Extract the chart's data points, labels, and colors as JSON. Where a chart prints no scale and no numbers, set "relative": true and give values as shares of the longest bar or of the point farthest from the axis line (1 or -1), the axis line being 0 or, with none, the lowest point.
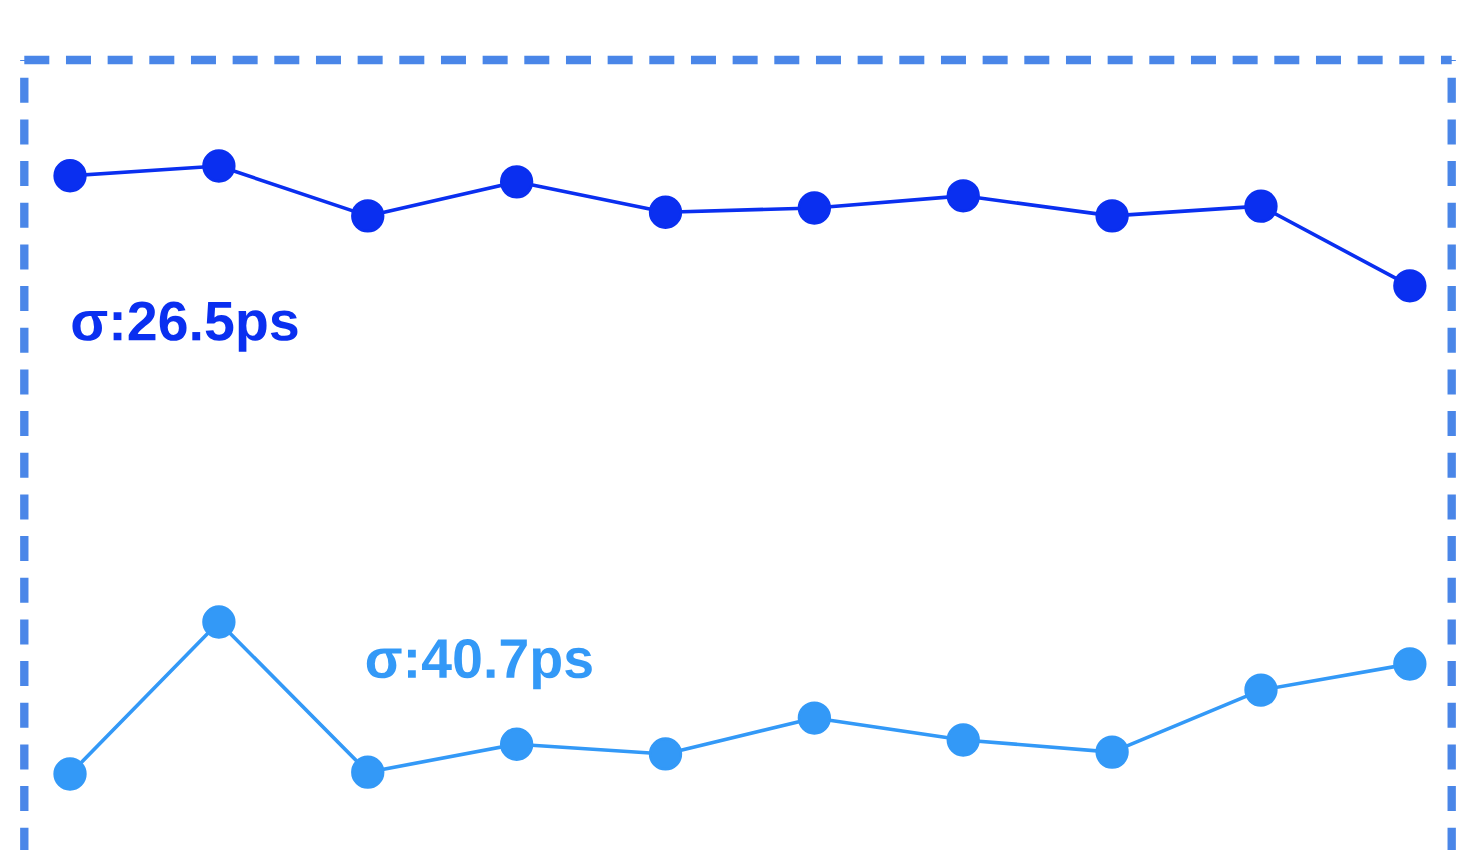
{
  "chart_data": {
    "type": "line",
    "relative": true,
    "marker": "circle",
    "line_style": "solid",
    "grid": false,
    "legend": false,
    "categories": [
      null,
      null,
      null,
      null,
      null,
      null,
      null,
      null,
      null,
      null
    ],
    "series": [
      {
        "color": "#0a2ff0",
        "values": [
          0.984,
          1,
          0.918,
          0.974,
          0.924,
          0.931,
          0.951,
          0.918,
          0.934,
          0.803
        ]
      },
      {
        "color": "#3399f7",
        "values": [
          0,
          0.25,
          0.003,
          0.049,
          0.033,
          0.092,
          0.056,
          0.036,
          0.138,
          0.181
        ]
      }
    ],
    "annotations": [
      "σ:26.5ps",
      "σ:40.7ps"
    ]
  }
}
